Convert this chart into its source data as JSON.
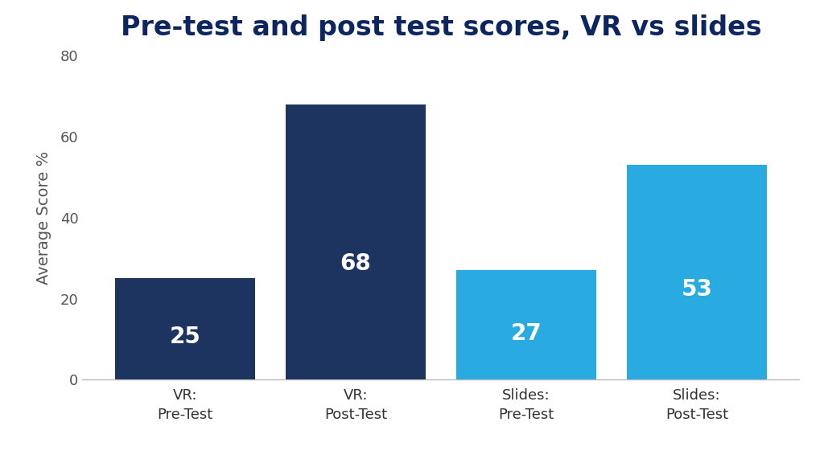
{
  "title": "Pre-test and post test scores, VR vs slides",
  "categories": [
    "VR:\nPre-Test",
    "VR:\nPost-Test",
    "Slides:\nPre-Test",
    "Slides:\nPost-Test"
  ],
  "values": [
    25,
    68,
    27,
    53
  ],
  "bar_colors": [
    "#1d3461",
    "#1d3461",
    "#29abe2",
    "#29abe2"
  ],
  "ylabel": "Average Score %",
  "ylim": [
    0,
    80
  ],
  "yticks": [
    0,
    20,
    40,
    60,
    80
  ],
  "bar_labels": [
    "25",
    "68",
    "27",
    "53"
  ],
  "label_color": "#ffffff",
  "title_color": "#0d2660",
  "title_fontsize": 24,
  "label_fontsize": 20,
  "ylabel_fontsize": 14,
  "tick_fontsize": 13,
  "background_color": "#ffffff",
  "bar_width": 0.82
}
